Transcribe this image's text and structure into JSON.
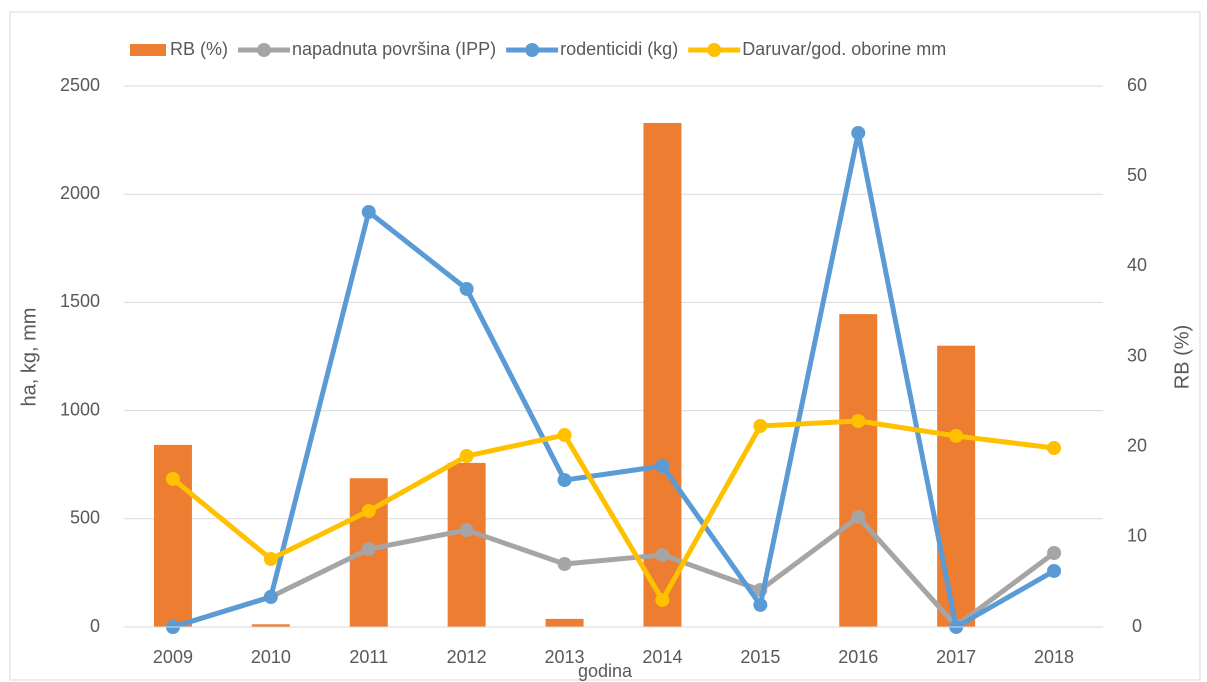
{
  "chart_data": {
    "type": "combo",
    "x_label": "godina",
    "y_label": "ha, kg, mm",
    "y2_label": "RB (%)",
    "categories": [
      "2009",
      "2010",
      "2011",
      "2012",
      "2013",
      "2014",
      "2015",
      "2016",
      "2017",
      "2018"
    ],
    "series": [
      {
        "name": "RB (%)",
        "type": "bar",
        "axis": "y2",
        "color": "#ed7d31",
        "values": [
          20.2,
          0.3,
          16.5,
          18.2,
          0.9,
          55.9,
          0,
          34.7,
          31.2,
          0
        ]
      },
      {
        "name": "napadnuta površina (IPP)",
        "type": "line",
        "color": "#a5a5a5",
        "values": [
          0,
          139,
          360,
          448,
          291,
          333,
          171,
          508,
          5,
          342
        ]
      },
      {
        "name": "rodenticidi (kg)",
        "type": "line",
        "color": "#5b9bd5",
        "values": [
          0,
          139,
          1918,
          1562,
          679,
          744,
          102,
          2283,
          0,
          259
        ]
      },
      {
        "name": "Daruvar/god. oborine mm",
        "type": "line",
        "color": "#ffc000",
        "values": [
          684,
          314,
          536,
          790,
          887,
          125,
          929,
          952,
          883,
          827
        ]
      }
    ],
    "ylim": [
      0,
      2500
    ],
    "yticks": [
      0,
      500,
      1000,
      1500,
      2000,
      2500
    ],
    "y2lim": [
      0,
      60
    ],
    "y2ticks": [
      0,
      10,
      20,
      30,
      40,
      50,
      60
    ],
    "grid": true,
    "legend": "top"
  }
}
